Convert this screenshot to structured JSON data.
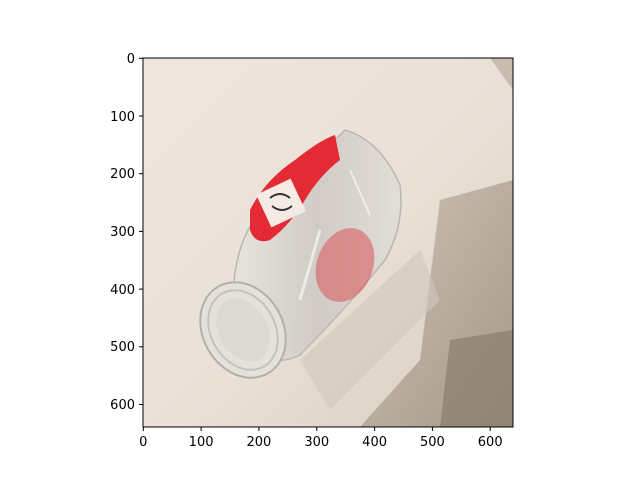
{
  "axes": {
    "x_ticks": [
      "0",
      "100",
      "200",
      "300",
      "400",
      "500",
      "600"
    ],
    "y_ticks": [
      "0",
      "100",
      "200",
      "300",
      "400",
      "500",
      "600"
    ],
    "xlim": [
      0,
      640
    ],
    "ylim": [
      640,
      0
    ]
  },
  "image": {
    "subject": "photo",
    "colors": {
      "background": "#ece4dc",
      "shadow": "#b9ac9e",
      "label_red": "#e32a35",
      "glass": "#dcd9d4",
      "axis": "#000000"
    }
  }
}
